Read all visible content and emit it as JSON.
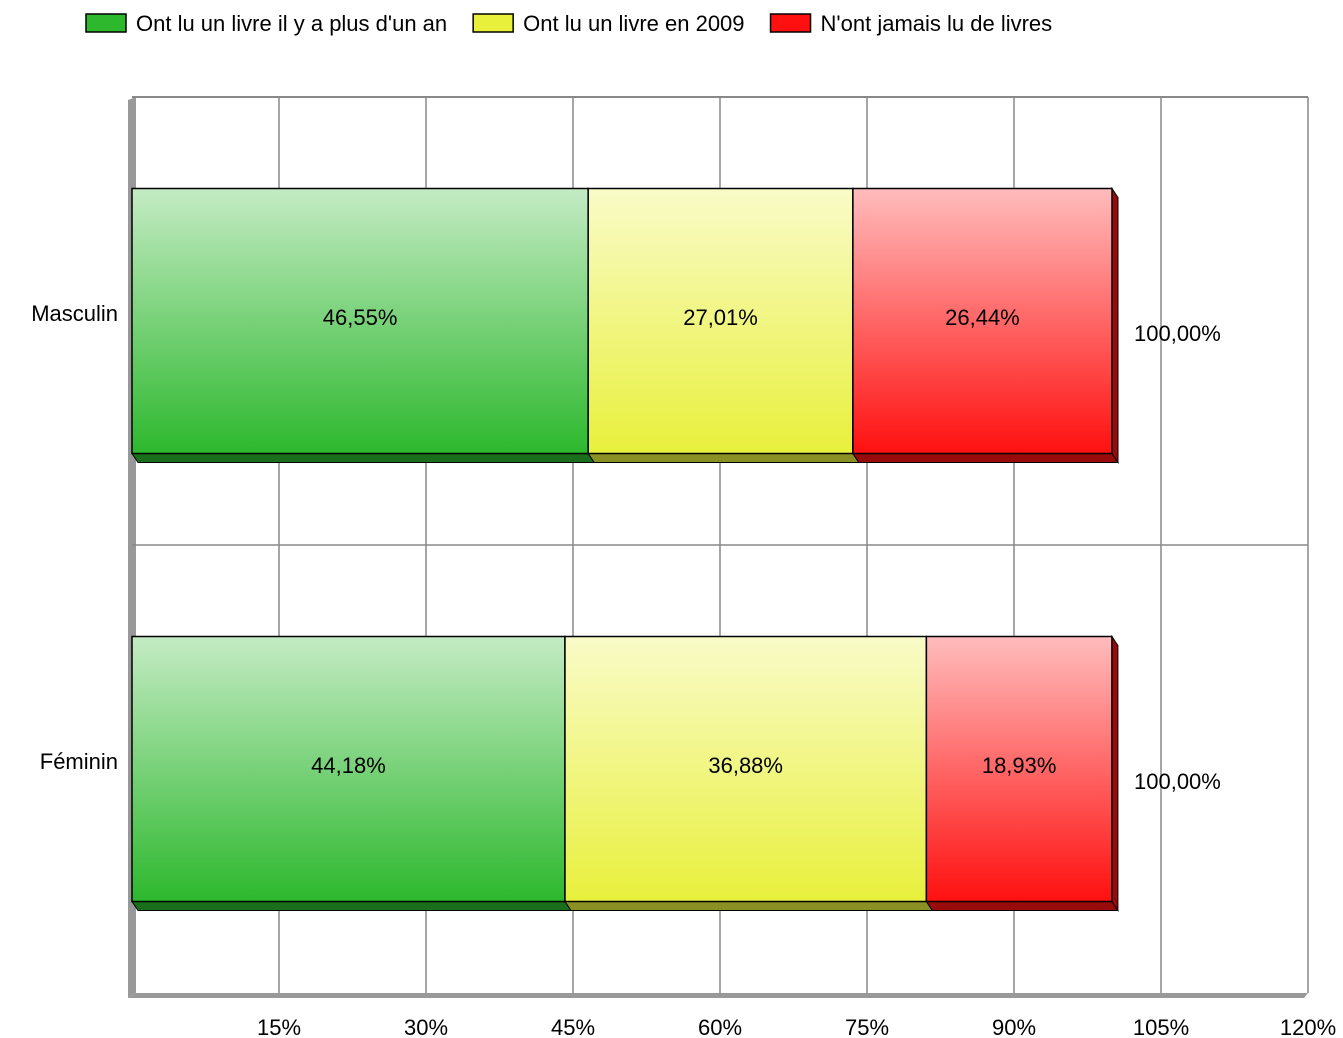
{
  "chart_data": {
    "type": "stacked_bar",
    "orientation": "horizontal",
    "categories": [
      "Masculin",
      "Féminin"
    ],
    "series": [
      {
        "name": "Ont lu un livre il y a plus d'un an",
        "color": "#2db82d",
        "values": [
          46.55,
          44.18
        ],
        "value_labels": [
          "46,55%",
          "44,18%"
        ]
      },
      {
        "name": "Ont lu un livre en 2009",
        "color": "#e8f03c",
        "values": [
          27.01,
          36.88
        ],
        "value_labels": [
          "27,01%",
          "36,88%"
        ]
      },
      {
        "name": "N'ont jamais lu de livres",
        "color": "#ff1010",
        "values": [
          26.44,
          18.93
        ],
        "value_labels": [
          "26,44%",
          "18,93%"
        ]
      }
    ],
    "totals": [
      100,
      100
    ],
    "total_labels": [
      "100,00%",
      "100,00%"
    ],
    "xlim": [
      0,
      120
    ],
    "xticks": [
      {
        "value": 15,
        "label": "15%"
      },
      {
        "value": 30,
        "label": "30%"
      },
      {
        "value": 45,
        "label": "45%"
      },
      {
        "value": 60,
        "label": "60%"
      },
      {
        "value": 75,
        "label": "75%"
      },
      {
        "value": 90,
        "label": "90%"
      },
      {
        "value": 105,
        "label": "105%"
      },
      {
        "value": 120,
        "label": "120%"
      }
    ],
    "grid": true,
    "legend": "top"
  }
}
